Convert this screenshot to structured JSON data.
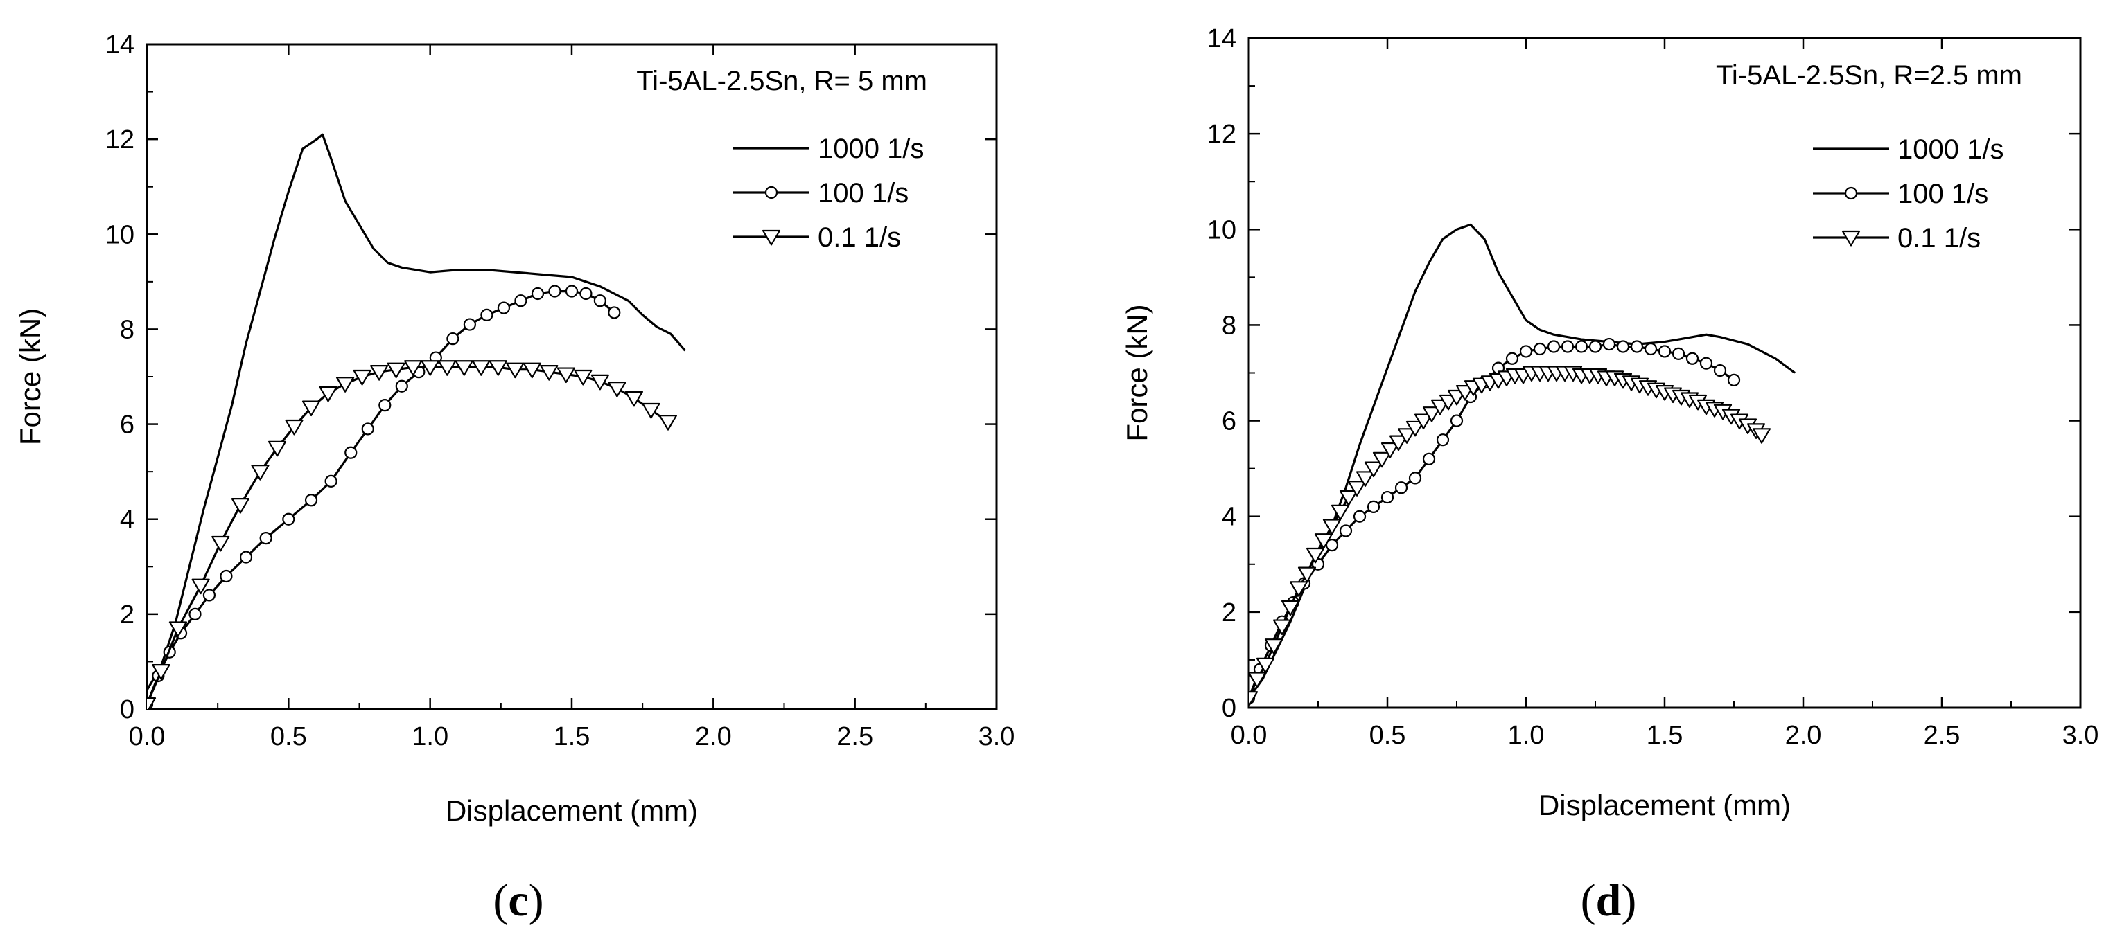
{
  "figure": {
    "panels": [
      {
        "label_open": "(",
        "label_letter": "c",
        "label_close": ")"
      },
      {
        "label_open": "(",
        "label_letter": "d",
        "label_close": ")"
      }
    ]
  },
  "chart_data": [
    {
      "type": "line",
      "panel": "c",
      "annotation": "Ti-5AL-2.5Sn, R= 5 mm",
      "xlabel": "Displacement (mm)",
      "ylabel": "Force (kN)",
      "xlim": [
        0,
        3
      ],
      "ylim": [
        0,
        14
      ],
      "xticks": [
        "0.0",
        "0.5",
        "1.0",
        "1.5",
        "2.0",
        "2.5",
        "3.0"
      ],
      "yticks": [
        "0",
        "2",
        "4",
        "6",
        "8",
        "10",
        "12",
        "14"
      ],
      "legend_position": "top-right",
      "series": [
        {
          "name": "1000 1/s",
          "marker": "none",
          "x": [
            0.0,
            0.05,
            0.1,
            0.15,
            0.2,
            0.25,
            0.3,
            0.35,
            0.4,
            0.45,
            0.5,
            0.55,
            0.6,
            0.62,
            0.65,
            0.7,
            0.75,
            0.8,
            0.85,
            0.9,
            0.95,
            1.0,
            1.1,
            1.2,
            1.3,
            1.4,
            1.5,
            1.6,
            1.65,
            1.7,
            1.75,
            1.8,
            1.85,
            1.9
          ],
          "y": [
            0.4,
            0.9,
            1.8,
            3.0,
            4.2,
            5.3,
            6.4,
            7.7,
            8.8,
            9.9,
            10.9,
            11.8,
            12.0,
            12.1,
            11.6,
            10.7,
            10.2,
            9.7,
            9.4,
            9.3,
            9.25,
            9.2,
            9.25,
            9.25,
            9.2,
            9.15,
            9.1,
            8.9,
            8.75,
            8.6,
            8.3,
            8.05,
            7.9,
            7.55
          ]
        },
        {
          "name": "100 1/s",
          "marker": "circle",
          "x": [
            0.0,
            0.04,
            0.08,
            0.12,
            0.17,
            0.22,
            0.28,
            0.35,
            0.42,
            0.5,
            0.58,
            0.65,
            0.72,
            0.78,
            0.84,
            0.9,
            0.96,
            1.02,
            1.08,
            1.14,
            1.2,
            1.26,
            1.32,
            1.38,
            1.44,
            1.5,
            1.55,
            1.6,
            1.65
          ],
          "y": [
            0.1,
            0.7,
            1.2,
            1.6,
            2.0,
            2.4,
            2.8,
            3.2,
            3.6,
            4.0,
            4.4,
            4.8,
            5.4,
            5.9,
            6.4,
            6.8,
            7.1,
            7.4,
            7.8,
            8.1,
            8.3,
            8.45,
            8.6,
            8.75,
            8.8,
            8.8,
            8.75,
            8.6,
            8.35
          ]
        },
        {
          "name": "0.1 1/s",
          "marker": "triangle-down",
          "x": [
            0.0,
            0.05,
            0.11,
            0.19,
            0.26,
            0.33,
            0.4,
            0.46,
            0.52,
            0.58,
            0.64,
            0.7,
            0.76,
            0.82,
            0.88,
            0.94,
            1.0,
            1.06,
            1.12,
            1.18,
            1.24,
            1.3,
            1.36,
            1.42,
            1.48,
            1.54,
            1.6,
            1.66,
            1.72,
            1.78,
            1.84
          ],
          "y": [
            0.1,
            0.8,
            1.7,
            2.6,
            3.5,
            4.3,
            5.0,
            5.5,
            5.95,
            6.35,
            6.65,
            6.85,
            7.0,
            7.1,
            7.15,
            7.2,
            7.2,
            7.2,
            7.2,
            7.2,
            7.2,
            7.15,
            7.15,
            7.1,
            7.05,
            7.0,
            6.9,
            6.75,
            6.55,
            6.3,
            6.05
          ]
        }
      ]
    },
    {
      "type": "line",
      "panel": "d",
      "annotation": "Ti-5AL-2.5Sn, R=2.5 mm",
      "xlabel": "Displacement (mm)",
      "ylabel": "Force (kN)",
      "xlim": [
        0,
        3
      ],
      "ylim": [
        0,
        14
      ],
      "xticks": [
        "0.0",
        "0.5",
        "1.0",
        "1.5",
        "2.0",
        "2.5",
        "3.0"
      ],
      "yticks": [
        "0",
        "2",
        "4",
        "6",
        "8",
        "10",
        "12",
        "14"
      ],
      "legend_position": "top-right",
      "series": [
        {
          "name": "1000 1/s",
          "marker": "none",
          "x": [
            0.0,
            0.05,
            0.1,
            0.15,
            0.2,
            0.25,
            0.3,
            0.35,
            0.4,
            0.45,
            0.5,
            0.55,
            0.6,
            0.65,
            0.7,
            0.75,
            0.8,
            0.85,
            0.9,
            0.95,
            1.0,
            1.05,
            1.1,
            1.2,
            1.3,
            1.4,
            1.5,
            1.6,
            1.65,
            1.7,
            1.8,
            1.9,
            1.97
          ],
          "y": [
            0.2,
            0.6,
            1.2,
            1.8,
            2.5,
            3.2,
            3.8,
            4.6,
            5.5,
            6.3,
            7.1,
            7.9,
            8.7,
            9.3,
            9.8,
            10.0,
            10.1,
            9.8,
            9.1,
            8.6,
            8.1,
            7.9,
            7.8,
            7.7,
            7.65,
            7.6,
            7.65,
            7.75,
            7.8,
            7.75,
            7.6,
            7.3,
            7.0
          ]
        },
        {
          "name": "100 1/s",
          "marker": "circle",
          "x": [
            0.0,
            0.04,
            0.08,
            0.12,
            0.16,
            0.2,
            0.25,
            0.3,
            0.35,
            0.4,
            0.45,
            0.5,
            0.55,
            0.6,
            0.65,
            0.7,
            0.75,
            0.8,
            0.85,
            0.9,
            0.95,
            1.0,
            1.05,
            1.1,
            1.15,
            1.2,
            1.25,
            1.3,
            1.35,
            1.4,
            1.45,
            1.5,
            1.55,
            1.6,
            1.65,
            1.7,
            1.75
          ],
          "y": [
            0.2,
            0.8,
            1.3,
            1.8,
            2.2,
            2.6,
            3.0,
            3.4,
            3.7,
            4.0,
            4.2,
            4.4,
            4.6,
            4.8,
            5.2,
            5.6,
            6.0,
            6.5,
            6.8,
            7.1,
            7.3,
            7.45,
            7.5,
            7.55,
            7.55,
            7.55,
            7.55,
            7.6,
            7.55,
            7.55,
            7.5,
            7.45,
            7.4,
            7.3,
            7.2,
            7.05,
            6.85
          ]
        },
        {
          "name": "0.1 1/s",
          "marker": "triangle-down",
          "x": [
            0.0,
            0.03,
            0.06,
            0.09,
            0.12,
            0.15,
            0.18,
            0.21,
            0.24,
            0.27,
            0.3,
            0.33,
            0.36,
            0.39,
            0.42,
            0.45,
            0.48,
            0.51,
            0.54,
            0.57,
            0.6,
            0.63,
            0.66,
            0.69,
            0.72,
            0.75,
            0.78,
            0.81,
            0.84,
            0.87,
            0.9,
            0.93,
            0.96,
            0.99,
            1.02,
            1.05,
            1.08,
            1.11,
            1.14,
            1.17,
            1.2,
            1.23,
            1.26,
            1.29,
            1.32,
            1.35,
            1.38,
            1.41,
            1.44,
            1.47,
            1.5,
            1.53,
            1.56,
            1.59,
            1.62,
            1.65,
            1.68,
            1.71,
            1.74,
            1.77,
            1.8,
            1.83,
            1.85
          ],
          "y": [
            0.2,
            0.6,
            0.9,
            1.3,
            1.7,
            2.1,
            2.5,
            2.8,
            3.2,
            3.5,
            3.8,
            4.1,
            4.4,
            4.6,
            4.8,
            5.0,
            5.2,
            5.4,
            5.55,
            5.7,
            5.85,
            6.0,
            6.15,
            6.3,
            6.4,
            6.5,
            6.6,
            6.7,
            6.75,
            6.8,
            6.85,
            6.9,
            6.95,
            6.95,
            7.0,
            7.0,
            7.0,
            7.0,
            7.0,
            7.0,
            6.95,
            6.95,
            6.95,
            6.9,
            6.9,
            6.85,
            6.8,
            6.75,
            6.7,
            6.65,
            6.6,
            6.55,
            6.5,
            6.45,
            6.4,
            6.3,
            6.25,
            6.2,
            6.1,
            6.0,
            5.9,
            5.8,
            5.7
          ]
        }
      ]
    }
  ]
}
